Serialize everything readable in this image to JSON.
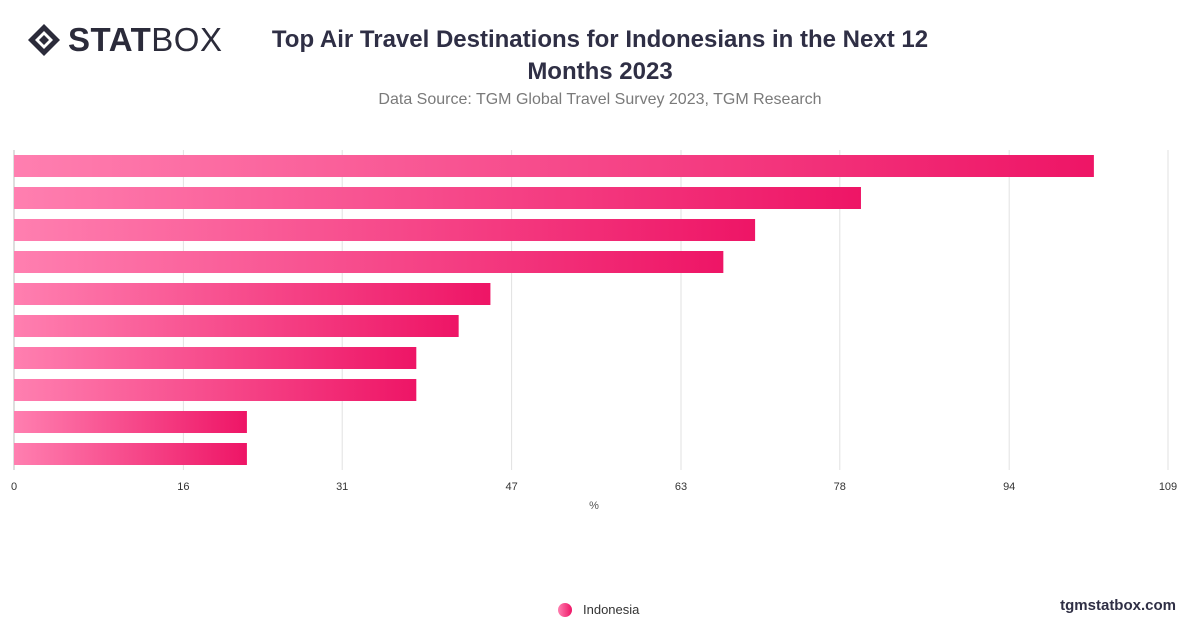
{
  "brand": {
    "logo_bold": "STAT",
    "logo_light": "BOX",
    "website": "tgmstatbox.com"
  },
  "header": {
    "title": "Top Air Travel Destinations for Indonesians in the Next 12 Months 2023",
    "subtitle": "Data Source: TGM Global Travel Survey 2023, TGM Research"
  },
  "colors": {
    "bar_gradient_start": "#ff7fb0",
    "bar_gradient_end": "#ee1566",
    "grid": "#e2e2e2",
    "axis_text": "#333333"
  },
  "chart_data": {
    "type": "bar",
    "orientation": "horizontal",
    "categories": [
      "",
      "",
      "",
      "",
      "",
      "",
      "",
      "",
      "",
      ""
    ],
    "series": [
      {
        "name": "Indonesia",
        "values": [
          102,
          80,
          70,
          67,
          45,
          42,
          38,
          38,
          22,
          22
        ]
      }
    ],
    "xlabel": "%",
    "xlim": [
      0,
      109
    ],
    "xticks": [
      0,
      16,
      31,
      47,
      63,
      78,
      94,
      109
    ],
    "grid": true,
    "legend_position": "bottom-center"
  }
}
